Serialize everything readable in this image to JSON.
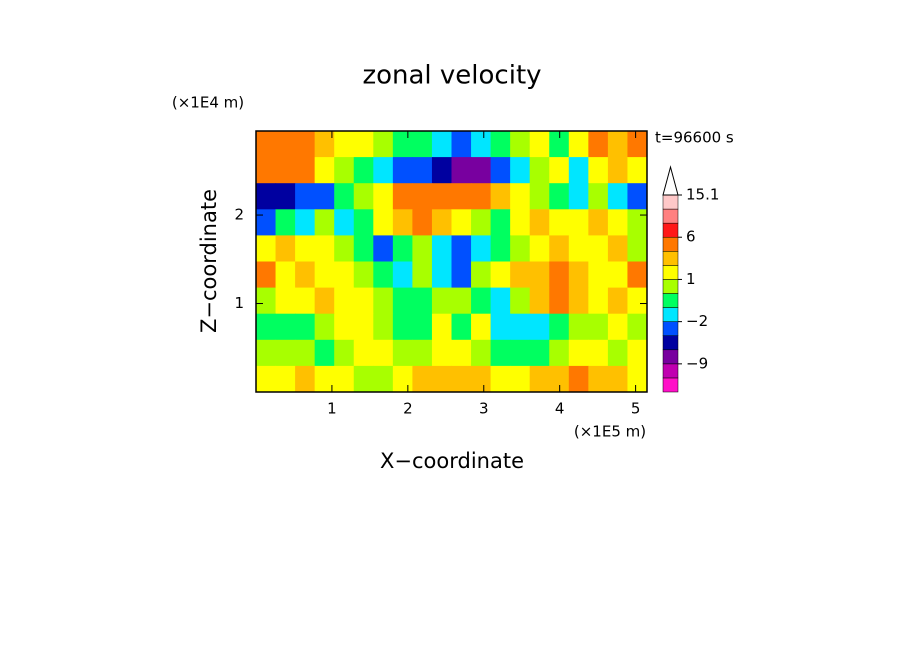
{
  "chart_data": {
    "type": "contour",
    "title": "zonal velocity",
    "x_label": "X−coordinate",
    "y_label": "Z−coordinate",
    "x_unit": "(×1E5 m)",
    "y_unit": "(×1E4 m)",
    "time_label": "t=96600 s",
    "xlim": [
      0,
      5.15
    ],
    "ylim": [
      0,
      2.95
    ],
    "xticks": [
      1,
      2,
      3,
      4,
      5
    ],
    "yticks": [
      1,
      2
    ],
    "field": [
      [
        3,
        4,
        4,
        2,
        1,
        1,
        0,
        -1,
        -1,
        -2,
        -3,
        -2,
        -1,
        0,
        1,
        -1,
        1,
        3,
        2,
        3
      ],
      [
        4,
        4,
        3,
        1,
        0,
        -1,
        -2,
        -4,
        -4,
        -6,
        -8,
        -7,
        -3,
        -2,
        0,
        1,
        -2,
        1,
        2,
        1
      ],
      [
        -6,
        -6,
        -4,
        -3,
        -1,
        0,
        1,
        3,
        4,
        4,
        3,
        3,
        2,
        1,
        0,
        -1,
        -2,
        0,
        -2,
        -4
      ],
      [
        -3,
        -1,
        -2,
        0,
        -2,
        -1,
        1,
        2,
        3,
        2,
        1,
        0,
        -1,
        1,
        2,
        1,
        1,
        2,
        1,
        0
      ],
      [
        1,
        2,
        1,
        1,
        0,
        -1,
        -3,
        -1,
        0,
        -2,
        -4,
        -2,
        -1,
        0,
        1,
        2,
        1,
        1,
        2,
        0
      ],
      [
        3,
        1,
        2,
        1,
        1,
        0,
        -1,
        -2,
        0,
        -2,
        -3,
        0,
        1,
        2,
        2,
        3,
        2,
        1,
        1,
        3
      ],
      [
        0,
        1,
        1,
        2,
        1,
        1,
        0,
        -1,
        -1,
        0,
        0,
        -1,
        -2,
        0,
        2,
        3,
        2,
        1,
        2,
        1
      ],
      [
        -1,
        -1,
        -1,
        0,
        1,
        1,
        0,
        -1,
        -1,
        1,
        -1,
        1,
        -2,
        -2,
        -2,
        -1,
        0,
        0,
        1,
        0
      ],
      [
        0,
        0,
        0,
        -1,
        0,
        1,
        1,
        0,
        0,
        1,
        1,
        0,
        -1,
        -1,
        -1,
        0,
        1,
        1,
        0,
        1
      ],
      [
        1,
        1,
        2,
        1,
        1,
        0,
        0,
        1,
        2,
        2,
        2,
        2,
        1,
        1,
        2,
        2,
        3,
        2,
        2,
        1
      ]
    ],
    "levels": [
      -15,
      -12,
      -9,
      -6,
      -4,
      -2,
      -1,
      0,
      1,
      2,
      3,
      6,
      9,
      12,
      15.1
    ],
    "level_colors": [
      "#ff10c8",
      "#c000b0",
      "#78009f",
      "#0000a0",
      "#0050ff",
      "#00e6ff",
      "#00ff60",
      "#a8ff00",
      "#ffff00",
      "#ffc000",
      "#ff7800",
      "#ff1818",
      "#ff8080",
      "#ffc8c8"
    ],
    "colorbar_ticks": [
      {
        "value": -9,
        "label": "−9"
      },
      {
        "value": -2,
        "label": "−2"
      },
      1,
      6,
      15.1
    ]
  }
}
